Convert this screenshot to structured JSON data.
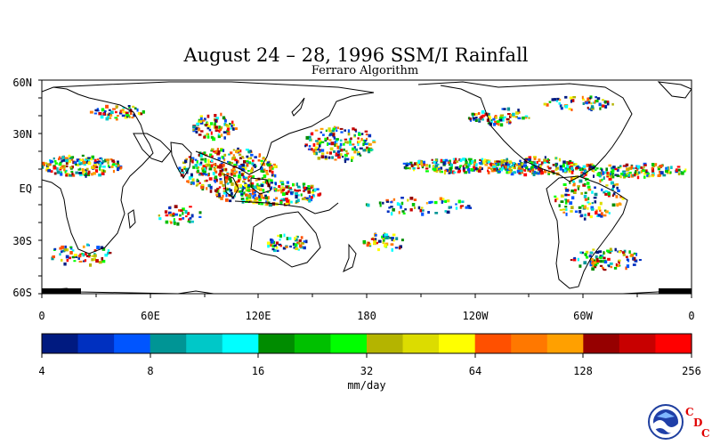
{
  "title": "August 24 – 28, 1996 SSM/I Rainfall",
  "subtitle": "Ferraro Algorithm",
  "lat_labels": [
    "60N",
    "30N",
    "EQ",
    "30S",
    "60S"
  ],
  "lon_labels": [
    "0",
    "60E",
    "120E",
    "180",
    "120W",
    "60W",
    "0"
  ],
  "colorbar": {
    "labels": [
      "4",
      "8",
      "16",
      "32",
      "64",
      "128",
      "256"
    ],
    "units": "mm/day",
    "colors": [
      "#001a80",
      "#0030c0",
      "#0055ff",
      "#009595",
      "#00c8c8",
      "#00ffff",
      "#008c00",
      "#00c000",
      "#00ff00",
      "#b4b400",
      "#dcdc00",
      "#ffff00",
      "#ff5000",
      "#ff7800",
      "#ffa000",
      "#960000",
      "#c80000",
      "#ff0000"
    ]
  },
  "logo": {
    "name": "NOAA",
    "cdc_letters": [
      "C",
      "D",
      "C"
    ]
  }
}
